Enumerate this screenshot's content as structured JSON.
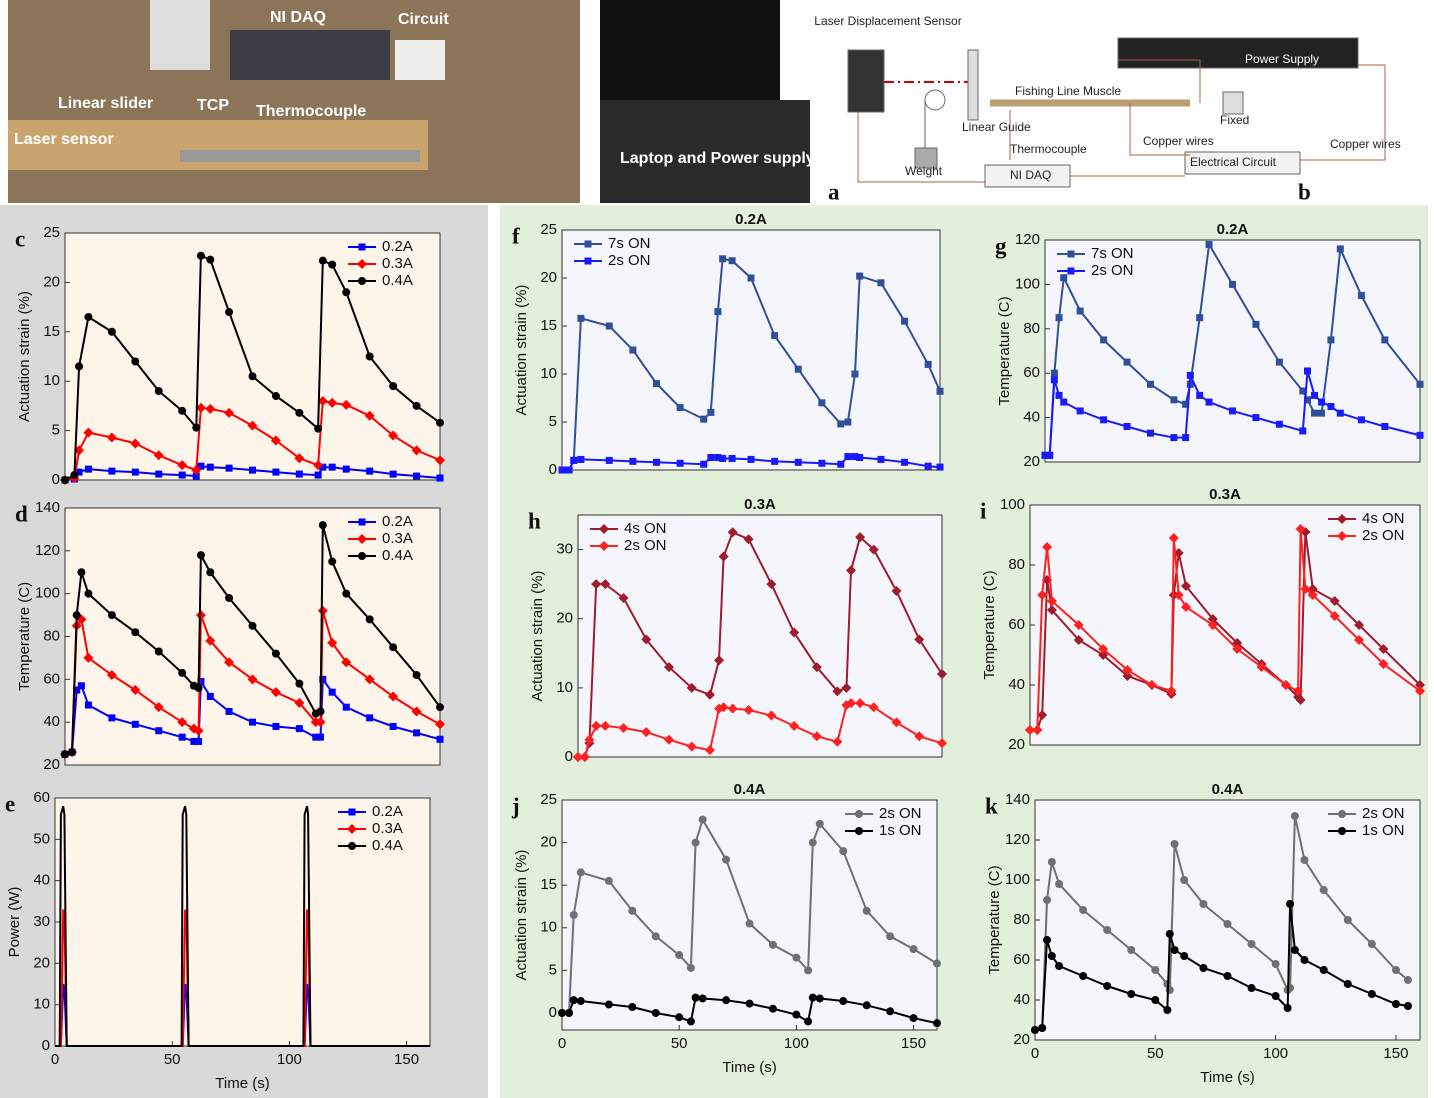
{
  "photo": {
    "panel": "a",
    "labels": [
      "NI DAQ",
      "Circuit",
      "Linear slider",
      "TCP",
      "Thermocouple",
      "Laser sensor",
      "Laptop and Power supply"
    ]
  },
  "diagram": {
    "panel": "b",
    "labels": [
      "Laser Displacement Sensor",
      "Power Supply",
      "Fishing Line Muscle",
      "Fixed",
      "Linear Guide",
      "Weight",
      "Thermocouple",
      "NI DAQ",
      "Copper wires",
      "Electrical Circuit",
      "Copper wires"
    ]
  },
  "chart_data": [
    {
      "type": "line",
      "panel": "c",
      "ylabel": "Actuation strain (%)",
      "legend": "upper right",
      "show_markers": true,
      "x": [
        0,
        4,
        6,
        10,
        20,
        30,
        40,
        50,
        56,
        58,
        62,
        70,
        80,
        90,
        100,
        108,
        110,
        114,
        120,
        130,
        140,
        150,
        160
      ],
      "xlim": [
        0,
        160
      ],
      "ylim": [
        0,
        25
      ],
      "yticks": [
        0,
        5,
        10,
        15,
        20,
        25
      ],
      "series": [
        {
          "name": "0.2A",
          "color": "#0000ff",
          "marker": "square",
          "values": [
            0,
            0.1,
            0.8,
            1.1,
            0.9,
            0.8,
            0.6,
            0.5,
            0.4,
            1.4,
            1.3,
            1.2,
            1,
            0.8,
            0.6,
            0.5,
            1.3,
            1.3,
            1.1,
            0.9,
            0.6,
            0.4,
            0.2
          ]
        },
        {
          "name": "0.3A",
          "color": "#ff0000",
          "marker": "diamond",
          "values": [
            0,
            0.2,
            3,
            4.8,
            4.3,
            3.7,
            2.5,
            1.5,
            1,
            7.3,
            7.2,
            6.8,
            5.5,
            4,
            2.2,
            1.5,
            8,
            7.8,
            7.6,
            6.5,
            4.5,
            3,
            2
          ]
        },
        {
          "name": "0.4A",
          "color": "#000000",
          "marker": "circle",
          "values": [
            0,
            0.5,
            11.5,
            16.5,
            15,
            12,
            9,
            7,
            5.3,
            22.7,
            22.3,
            17,
            10.5,
            8.5,
            6.8,
            5.2,
            22.2,
            21.8,
            19,
            12.5,
            9.5,
            7.5,
            5.8
          ]
        }
      ]
    },
    {
      "type": "line",
      "panel": "d",
      "ylabel": "Temperature (C)",
      "legend": "upper right",
      "show_markers": true,
      "x": [
        0,
        3,
        5,
        7,
        10,
        20,
        30,
        40,
        50,
        55,
        57,
        58,
        62,
        70,
        80,
        90,
        100,
        107,
        109,
        110,
        114,
        120,
        130,
        140,
        150,
        160
      ],
      "xlim": [
        0,
        160
      ],
      "ylim": [
        20,
        140
      ],
      "yticks": [
        20,
        40,
        60,
        80,
        100,
        120,
        140
      ],
      "series": [
        {
          "name": "0.2A",
          "color": "#0000ff",
          "marker": "square",
          "values": [
            25,
            26,
            55,
            57,
            48,
            42,
            39,
            36,
            33,
            31,
            31,
            59,
            52,
            45,
            40,
            38,
            37,
            33,
            33,
            60,
            54,
            47,
            42,
            38,
            35,
            32
          ]
        },
        {
          "name": "0.3A",
          "color": "#ff0000",
          "marker": "diamond",
          "values": [
            25,
            26,
            85,
            88,
            70,
            62,
            55,
            47,
            40,
            37,
            36,
            90,
            78,
            68,
            60,
            54,
            49,
            40,
            40,
            92,
            77,
            68,
            60,
            52,
            45,
            39
          ]
        },
        {
          "name": "0.4A",
          "color": "#000000",
          "marker": "circle",
          "values": [
            25,
            26,
            90,
            110,
            100,
            90,
            82,
            73,
            63,
            57,
            56,
            118,
            110,
            98,
            85,
            72,
            58,
            44,
            45,
            132,
            115,
            100,
            88,
            75,
            62,
            47
          ]
        }
      ]
    },
    {
      "type": "line",
      "panel": "e",
      "ylabel": "Power (W)",
      "xlabel": "Time (s)",
      "legend": "upper right",
      "show_markers": false,
      "x": [
        0,
        2,
        2.5,
        3.5,
        4,
        5,
        54,
        54.5,
        55.5,
        56,
        57,
        106,
        106.5,
        107.5,
        108,
        109,
        160
      ],
      "xlim": [
        0,
        160
      ],
      "xticks": [
        0,
        50,
        100,
        150
      ],
      "ylim": [
        0,
        60
      ],
      "yticks": [
        0,
        10,
        20,
        30,
        40,
        50,
        60
      ],
      "series": [
        {
          "name": "0.2A",
          "color": "#0000ff",
          "marker": "square",
          "values": [
            0,
            0,
            0,
            15,
            14,
            0,
            0,
            0,
            15,
            14,
            0,
            0,
            0,
            15,
            14,
            0,
            0
          ]
        },
        {
          "name": "0.3A",
          "color": "#ff0000",
          "marker": "diamond",
          "values": [
            0,
            0,
            0,
            33,
            32,
            0,
            0,
            0,
            33,
            32,
            0,
            0,
            0,
            33,
            32,
            0,
            0
          ]
        },
        {
          "name": "0.4A",
          "color": "#000000",
          "marker": "circle",
          "values": [
            0,
            0,
            56,
            58,
            56,
            0,
            0,
            56,
            58,
            56,
            0,
            0,
            56,
            58,
            56,
            0,
            0
          ]
        }
      ]
    },
    {
      "type": "line",
      "panel": "f",
      "title": "0.2A",
      "ylabel": "Actuation strain (%)",
      "legend": "upper left",
      "show_markers": true,
      "x": [
        0,
        3,
        5,
        8,
        20,
        30,
        40,
        50,
        60,
        63,
        66,
        68,
        72,
        80,
        90,
        100,
        110,
        118,
        121,
        124,
        126,
        135,
        145,
        155,
        160
      ],
      "xlim": [
        0,
        160
      ],
      "ylim": [
        0,
        25
      ],
      "yticks": [
        0,
        5,
        10,
        15,
        20,
        25
      ],
      "series": [
        {
          "name": "7s ON",
          "color": "#2f4f9a",
          "marker": "square",
          "values": [
            0,
            0,
            1,
            15.8,
            15,
            12.5,
            9,
            6.5,
            5.3,
            6,
            16.5,
            22,
            21.8,
            20,
            14,
            10.5,
            7,
            4.8,
            5,
            10,
            20.2,
            19.5,
            15.5,
            11,
            8.2
          ]
        },
        {
          "name": "2s ON",
          "color": "#1a1aff",
          "marker": "square",
          "values": [
            0,
            0,
            1,
            1.1,
            1,
            0.9,
            0.8,
            0.7,
            0.6,
            1.3,
            1.3,
            1.2,
            1.2,
            1.1,
            0.9,
            0.8,
            0.7,
            0.6,
            1.4,
            1.4,
            1.3,
            1.1,
            0.8,
            0.4,
            0.3
          ]
        }
      ]
    },
    {
      "type": "line",
      "panel": "g",
      "title": "0.2A",
      "ylabel": "Temperature (C)",
      "legend": "upper left",
      "show_markers": true,
      "x": [
        0,
        2,
        4,
        6,
        8,
        15,
        25,
        35,
        45,
        55,
        60,
        62,
        66,
        70,
        80,
        90,
        100,
        110,
        112,
        115,
        118,
        122,
        126,
        135,
        145,
        160
      ],
      "xlim": [
        0,
        160
      ],
      "ylim": [
        20,
        120
      ],
      "yticks": [
        20,
        40,
        60,
        80,
        100,
        120
      ],
      "series": [
        {
          "name": "7s ON",
          "color": "#2f4f9a",
          "marker": "square",
          "values": [
            23,
            23,
            60,
            85,
            103,
            88,
            75,
            65,
            55,
            48,
            46,
            55,
            85,
            118,
            100,
            82,
            65,
            52,
            48,
            42,
            42,
            75,
            116,
            95,
            75,
            55
          ]
        },
        {
          "name": "2s ON",
          "color": "#1a1aff",
          "marker": "square",
          "values": [
            23,
            23,
            57,
            50,
            47,
            43,
            39,
            36,
            33,
            31,
            31,
            59,
            50,
            47,
            43,
            40,
            37,
            34,
            61,
            50,
            47,
            45,
            42,
            39,
            36,
            32
          ]
        }
      ]
    },
    {
      "type": "line",
      "panel": "h",
      "title": "0.3A",
      "ylabel": "Actuation strain (%)",
      "legend": "upper left",
      "show_markers": true,
      "x": [
        0,
        3,
        5,
        8,
        12,
        20,
        30,
        40,
        50,
        58,
        62,
        64,
        68,
        75,
        85,
        95,
        105,
        114,
        118,
        120,
        124,
        130,
        140,
        150,
        160
      ],
      "xlim": [
        0,
        160
      ],
      "ylim": [
        0,
        35
      ],
      "yticks": [
        0,
        10,
        20,
        30
      ],
      "series": [
        {
          "name": "4s ON",
          "color": "#a01c2c",
          "marker": "diamond",
          "values": [
            0,
            0,
            2,
            25,
            25,
            23,
            17,
            13,
            10,
            9,
            14,
            29,
            32.5,
            31.5,
            25,
            18,
            13,
            9.5,
            10,
            27,
            31.8,
            30,
            24,
            17,
            12
          ]
        },
        {
          "name": "2s ON",
          "color": "#ff2020",
          "marker": "diamond",
          "values": [
            0,
            0,
            2.5,
            4.5,
            4.5,
            4.2,
            3.6,
            2.5,
            1.5,
            1,
            7,
            7.2,
            7,
            6.8,
            6,
            4.5,
            3,
            2.2,
            7.5,
            7.8,
            7.8,
            7.2,
            5,
            3,
            2
          ]
        }
      ]
    },
    {
      "type": "line",
      "panel": "i",
      "title": "0.3A",
      "ylabel": "Temperature (C)",
      "legend": "upper right",
      "show_markers": true,
      "x": [
        0,
        3,
        5,
        7,
        9,
        20,
        30,
        40,
        50,
        58,
        59,
        61,
        64,
        75,
        85,
        95,
        105,
        110,
        111,
        113,
        116,
        125,
        135,
        145,
        160
      ],
      "xlim": [
        0,
        160
      ],
      "ylim": [
        20,
        100
      ],
      "yticks": [
        20,
        40,
        60,
        80,
        100
      ],
      "series": [
        {
          "name": "4s ON",
          "color": "#a01c2c",
          "marker": "diamond",
          "values": [
            25,
            25,
            30,
            75,
            65,
            55,
            50,
            43,
            40,
            37,
            70,
            84,
            73,
            62,
            54,
            47,
            40,
            36,
            35,
            91,
            72,
            68,
            60,
            52,
            40
          ]
        },
        {
          "name": "2s ON",
          "color": "#ff2020",
          "marker": "diamond",
          "values": [
            25,
            25,
            70,
            86,
            68,
            60,
            52,
            45,
            40,
            38,
            89,
            70,
            66,
            60,
            52,
            46,
            40,
            38,
            92,
            72,
            70,
            63,
            55,
            47,
            38
          ]
        }
      ]
    },
    {
      "type": "line",
      "panel": "j",
      "title": "0.4A",
      "ylabel": "Actuation strain (%)",
      "xlabel": "Time (s)",
      "legend": "upper right",
      "show_markers": true,
      "x": [
        0,
        3,
        5,
        8,
        20,
        30,
        40,
        50,
        55,
        57,
        60,
        70,
        80,
        90,
        100,
        105,
        107,
        110,
        120,
        130,
        140,
        150,
        160
      ],
      "xlim": [
        0,
        160
      ],
      "xticks": [
        0,
        50,
        100,
        150
      ],
      "ylim": [
        -2,
        25
      ],
      "yticks": [
        0,
        5,
        10,
        15,
        20,
        25
      ],
      "series": [
        {
          "name": "2s ON",
          "color": "#707070",
          "marker": "circle",
          "values": [
            0,
            0,
            11.5,
            16.5,
            15.5,
            12,
            9,
            6.8,
            5.3,
            20,
            22.7,
            18,
            10.5,
            8,
            6.5,
            5,
            20,
            22.2,
            19,
            12,
            9,
            7.5,
            5.8
          ]
        },
        {
          "name": "1s ON",
          "color": "#000000",
          "marker": "circle",
          "values": [
            0,
            0,
            1.5,
            1.4,
            1,
            0.7,
            0,
            -0.5,
            -1,
            1.8,
            1.7,
            1.5,
            1.1,
            0.5,
            -0.2,
            -1,
            1.8,
            1.7,
            1.4,
            0.9,
            0.2,
            -0.6,
            -1.2
          ]
        }
      ]
    },
    {
      "type": "line",
      "panel": "k",
      "title": "0.4A",
      "ylabel": "Temperature (C)",
      "xlabel": "Time (s)",
      "legend": "upper right",
      "show_markers": true,
      "x": [
        0,
        3,
        5,
        7,
        10,
        20,
        30,
        40,
        50,
        55,
        56,
        58,
        62,
        70,
        80,
        90,
        100,
        105,
        106,
        108,
        112,
        120,
        130,
        140,
        150,
        155
      ],
      "xlim": [
        0,
        160
      ],
      "xticks": [
        0,
        50,
        100,
        150
      ],
      "ylim": [
        20,
        140
      ],
      "yticks": [
        20,
        40,
        60,
        80,
        100,
        120,
        140
      ],
      "series": [
        {
          "name": "2s ON",
          "color": "#707070",
          "marker": "circle",
          "values": [
            25,
            26,
            90,
            109,
            98,
            85,
            75,
            65,
            55,
            48,
            45,
            118,
            100,
            88,
            78,
            68,
            58,
            45,
            46,
            132,
            110,
            95,
            80,
            68,
            55,
            50
          ]
        },
        {
          "name": "1s ON",
          "color": "#000000",
          "marker": "circle",
          "values": [
            25,
            26,
            70,
            62,
            57,
            52,
            47,
            43,
            40,
            35,
            73,
            65,
            62,
            56,
            52,
            46,
            42,
            36,
            88,
            65,
            60,
            55,
            48,
            43,
            38,
            37
          ]
        }
      ]
    }
  ]
}
